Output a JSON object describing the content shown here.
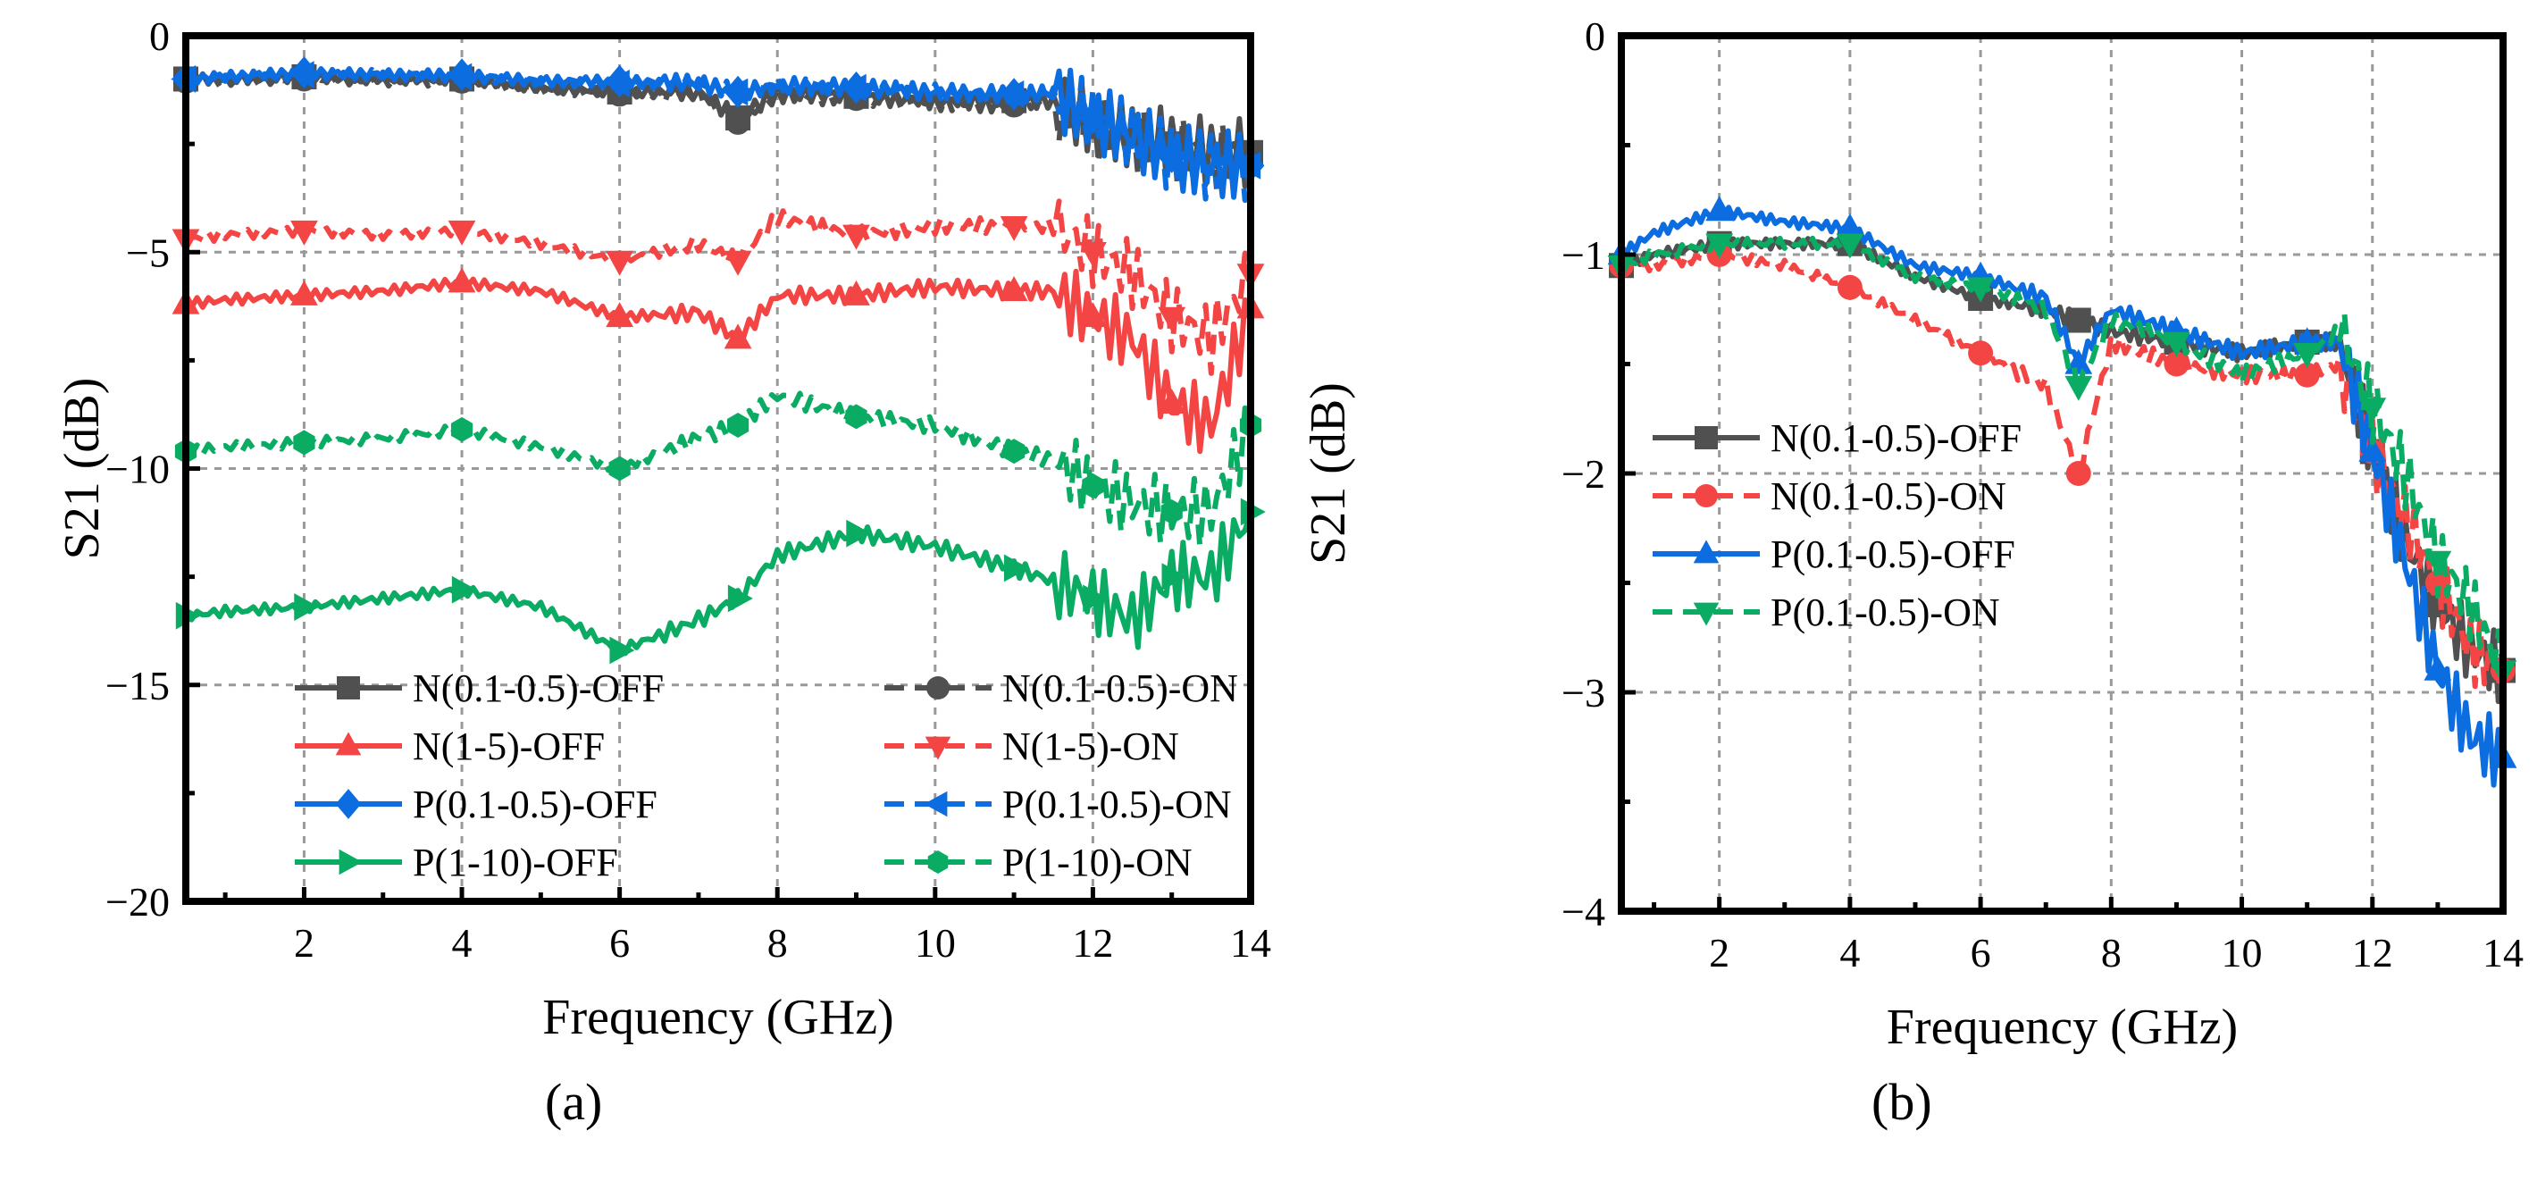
{
  "chart_data": [
    {
      "panel_label": "(a)",
      "type": "line",
      "xlabel": "Frequency (GHz)",
      "ylabel": "S21 (dB)",
      "xlim": [
        0.5,
        14
      ],
      "ylim": [
        -20,
        0
      ],
      "xticks": [
        2,
        4,
        6,
        8,
        10,
        12,
        14
      ],
      "yticks": [
        0,
        -5,
        -10,
        -15,
        -20
      ],
      "ytick_labels": [
        "0",
        "−5",
        "−10",
        "−15",
        "−20"
      ],
      "grid": true,
      "legend_position": "bottom, two columns",
      "x": [
        0.5,
        1,
        2,
        3,
        4,
        5,
        6,
        7,
        7.5,
        8,
        9,
        10,
        11,
        11.5,
        12,
        12.5,
        13,
        13.5,
        14
      ],
      "series": [
        {
          "name": "N(0.1-0.5)-OFF",
          "color": "#505050",
          "dash": false,
          "marker": "square",
          "values": [
            -1.0,
            -1.0,
            -0.95,
            -1.0,
            -1.0,
            -1.2,
            -1.3,
            -1.3,
            -1.9,
            -1.3,
            -1.4,
            -1.5,
            -1.5,
            -1.5,
            -2.0,
            -2.3,
            -2.5,
            -2.7,
            -2.7
          ]
        },
        {
          "name": "N(0.1-0.5)-ON",
          "color": "#505050",
          "dash": true,
          "marker": "circle",
          "values": [
            -1.05,
            -1.05,
            -1.0,
            -1.05,
            -1.05,
            -1.25,
            -1.35,
            -1.35,
            -2.0,
            -1.35,
            -1.45,
            -1.55,
            -1.6,
            -1.55,
            -2.1,
            -2.4,
            -2.6,
            -2.8,
            -2.8
          ]
        },
        {
          "name": "N(1-5)-OFF",
          "color": "#f44545",
          "dash": false,
          "marker": "triangle-up",
          "values": [
            -6.2,
            -6.1,
            -6.0,
            -5.9,
            -5.7,
            -5.9,
            -6.5,
            -6.4,
            -7.0,
            -6.0,
            -6.0,
            -5.8,
            -5.9,
            -5.9,
            -6.5,
            -7.0,
            -8.5,
            -9.0,
            -6.3
          ]
        },
        {
          "name": "N(1-5)-ON",
          "color": "#f44545",
          "dash": true,
          "marker": "triangle-down",
          "values": [
            -4.7,
            -4.6,
            -4.5,
            -4.6,
            -4.5,
            -4.8,
            -5.2,
            -4.8,
            -5.2,
            -4.2,
            -4.6,
            -4.4,
            -4.4,
            -4.4,
            -5.0,
            -5.5,
            -6.5,
            -7.0,
            -5.5
          ]
        },
        {
          "name": "P(0.1-0.5)-OFF",
          "color": "#0b6de0",
          "dash": false,
          "marker": "diamond",
          "values": [
            -1.0,
            -0.95,
            -0.85,
            -0.9,
            -0.9,
            -1.05,
            -1.05,
            -1.1,
            -1.3,
            -1.15,
            -1.2,
            -1.3,
            -1.35,
            -1.35,
            -1.9,
            -2.3,
            -2.8,
            -3.0,
            -3.0
          ]
        },
        {
          "name": "P(0.1-0.5)-ON",
          "color": "#0b6de0",
          "dash": true,
          "marker": "triangle-left",
          "values": [
            -1.0,
            -0.95,
            -0.9,
            -0.9,
            -0.95,
            -1.05,
            -1.1,
            -1.1,
            -1.3,
            -1.15,
            -1.2,
            -1.3,
            -1.35,
            -1.35,
            -1.9,
            -2.3,
            -2.8,
            -3.0,
            -3.0
          ]
        },
        {
          "name": "P(1-10)-OFF",
          "color": "#0aab63",
          "dash": false,
          "marker": "triangle-right",
          "values": [
            -13.4,
            -13.3,
            -13.2,
            -13.0,
            -12.8,
            -13.2,
            -14.2,
            -13.5,
            -13.0,
            -12.0,
            -11.5,
            -11.8,
            -12.3,
            -12.6,
            -13.0,
            -13.5,
            -12.5,
            -12.5,
            -11.0
          ]
        },
        {
          "name": "P(1-10)-ON",
          "color": "#0aab63",
          "dash": true,
          "marker": "hexagon",
          "values": [
            -9.6,
            -9.5,
            -9.4,
            -9.3,
            -9.1,
            -9.5,
            -10.0,
            -9.3,
            -9.0,
            -8.3,
            -8.8,
            -9.0,
            -9.6,
            -9.8,
            -10.4,
            -10.8,
            -11.0,
            -11.0,
            -9.0
          ]
        }
      ]
    },
    {
      "panel_label": "(b)",
      "type": "line",
      "xlabel": "Frequency (GHz)",
      "ylabel": "S21 (dB)",
      "xlim": [
        0.5,
        14
      ],
      "ylim": [
        -4,
        0
      ],
      "xticks": [
        2,
        4,
        6,
        8,
        10,
        12,
        14
      ],
      "yticks": [
        0,
        -1,
        -2,
        -3,
        -4
      ],
      "ytick_labels": [
        "0",
        "−1",
        "−2",
        "−3",
        "−4"
      ],
      "grid": true,
      "legend_position": "middle-left",
      "x": [
        0.5,
        1,
        2,
        3,
        4,
        5,
        6,
        7,
        7.5,
        8,
        9,
        10,
        11,
        11.5,
        12,
        12.5,
        13,
        13.5,
        14
      ],
      "series": [
        {
          "name": "N(0.1-0.5)-OFF",
          "color": "#505050",
          "dash": false,
          "marker": "square",
          "values": [
            -1.05,
            -1.0,
            -0.95,
            -0.95,
            -0.95,
            -1.1,
            -1.2,
            -1.25,
            -1.3,
            -1.35,
            -1.4,
            -1.45,
            -1.4,
            -1.4,
            -1.9,
            -2.3,
            -2.6,
            -2.8,
            -2.9
          ]
        },
        {
          "name": "N(0.1-0.5)-ON",
          "color": "#f44545",
          "dash": true,
          "marker": "circle",
          "values": [
            -1.05,
            -1.05,
            -1.0,
            -1.05,
            -1.15,
            -1.3,
            -1.45,
            -1.6,
            -2.0,
            -1.4,
            -1.5,
            -1.55,
            -1.55,
            -1.5,
            -1.9,
            -2.2,
            -2.5,
            -2.8,
            -2.9
          ]
        },
        {
          "name": "P(0.1-0.5)-OFF",
          "color": "#0b6de0",
          "dash": false,
          "marker": "triangle-up",
          "values": [
            -1.0,
            -0.9,
            -0.8,
            -0.85,
            -0.88,
            -1.05,
            -1.1,
            -1.2,
            -1.5,
            -1.25,
            -1.35,
            -1.45,
            -1.4,
            -1.4,
            -1.9,
            -2.4,
            -2.9,
            -3.2,
            -3.3
          ]
        },
        {
          "name": "P(0.1-0.5)-ON",
          "color": "#0aab63",
          "dash": true,
          "marker": "triangle-down",
          "values": [
            -1.05,
            -1.0,
            -0.95,
            -0.95,
            -0.95,
            -1.1,
            -1.15,
            -1.25,
            -1.6,
            -1.3,
            -1.4,
            -1.55,
            -1.45,
            -1.35,
            -1.7,
            -2.0,
            -2.4,
            -2.6,
            -2.9
          ]
        }
      ]
    }
  ]
}
